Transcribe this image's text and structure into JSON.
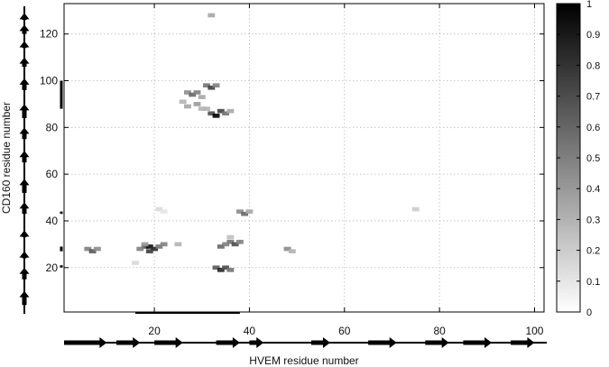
{
  "chart_data": {
    "type": "heatmap",
    "title": "",
    "xlabel": "HVEM residue number",
    "ylabel": "CD160 residue number",
    "xlim": [
      1,
      102
    ],
    "ylim": [
      1,
      133
    ],
    "xticks": [
      20,
      40,
      60,
      80,
      100
    ],
    "yticks": [
      20,
      40,
      60,
      80,
      100,
      120
    ],
    "grid": true,
    "colorbar": {
      "min": 0,
      "max": 1,
      "ticks": [
        0,
        0.1,
        0.2,
        0.3,
        0.4,
        0.5,
        0.6,
        0.7,
        0.8,
        0.9,
        1
      ],
      "colormap": [
        "#ffffff",
        "#000000"
      ]
    },
    "cells": [
      {
        "x": 32,
        "y": 128,
        "v": 0.35
      },
      {
        "x": 31,
        "y": 98,
        "v": 0.55
      },
      {
        "x": 32,
        "y": 97,
        "v": 0.75
      },
      {
        "x": 33,
        "y": 98,
        "v": 0.5
      },
      {
        "x": 27,
        "y": 95,
        "v": 0.45
      },
      {
        "x": 28,
        "y": 94,
        "v": 0.6
      },
      {
        "x": 29,
        "y": 95,
        "v": 0.5
      },
      {
        "x": 30,
        "y": 93,
        "v": 0.35
      },
      {
        "x": 26,
        "y": 91,
        "v": 0.3
      },
      {
        "x": 27,
        "y": 89,
        "v": 0.35
      },
      {
        "x": 29,
        "y": 90,
        "v": 0.4
      },
      {
        "x": 30,
        "y": 88,
        "v": 0.3
      },
      {
        "x": 32,
        "y": 86,
        "v": 0.7
      },
      {
        "x": 33,
        "y": 85,
        "v": 1.0
      },
      {
        "x": 34,
        "y": 87,
        "v": 0.75
      },
      {
        "x": 35,
        "y": 86,
        "v": 0.55
      },
      {
        "x": 36,
        "y": 87,
        "v": 0.35
      },
      {
        "x": 31,
        "y": 88,
        "v": 0.3
      },
      {
        "x": 21,
        "y": 45,
        "v": 0.15
      },
      {
        "x": 22,
        "y": 44,
        "v": 0.1
      },
      {
        "x": 38,
        "y": 44,
        "v": 0.45
      },
      {
        "x": 39,
        "y": 43,
        "v": 0.6
      },
      {
        "x": 40,
        "y": 44,
        "v": 0.35
      },
      {
        "x": 75,
        "y": 45,
        "v": 0.2
      },
      {
        "x": 36,
        "y": 33,
        "v": 0.25
      },
      {
        "x": 36,
        "y": 31,
        "v": 0.55
      },
      {
        "x": 37,
        "y": 30,
        "v": 0.7
      },
      {
        "x": 38,
        "y": 31,
        "v": 0.5
      },
      {
        "x": 34,
        "y": 29,
        "v": 0.6
      },
      {
        "x": 35,
        "y": 30,
        "v": 0.5
      },
      {
        "x": 25,
        "y": 30,
        "v": 0.3
      },
      {
        "x": 18,
        "y": 29,
        "v": 0.7
      },
      {
        "x": 19,
        "y": 29,
        "v": 0.95
      },
      {
        "x": 20,
        "y": 28,
        "v": 0.85
      },
      {
        "x": 21,
        "y": 29,
        "v": 0.55
      },
      {
        "x": 22,
        "y": 30,
        "v": 0.5
      },
      {
        "x": 17,
        "y": 28,
        "v": 0.5
      },
      {
        "x": 19,
        "y": 27,
        "v": 0.75
      },
      {
        "x": 18,
        "y": 30,
        "v": 0.4
      },
      {
        "x": 6,
        "y": 28,
        "v": 0.5
      },
      {
        "x": 7,
        "y": 27,
        "v": 0.65
      },
      {
        "x": 8,
        "y": 28,
        "v": 0.45
      },
      {
        "x": 48,
        "y": 28,
        "v": 0.45
      },
      {
        "x": 49,
        "y": 27,
        "v": 0.3
      },
      {
        "x": 16,
        "y": 22,
        "v": 0.15
      },
      {
        "x": 33,
        "y": 20,
        "v": 0.65
      },
      {
        "x": 34,
        "y": 19,
        "v": 0.85
      },
      {
        "x": 35,
        "y": 20,
        "v": 0.7
      },
      {
        "x": 36,
        "y": 19,
        "v": 0.55
      }
    ]
  },
  "x_secondary_structure": {
    "strands": [
      [
        1,
        10
      ],
      [
        12,
        17
      ],
      [
        20,
        26
      ],
      [
        33,
        38
      ],
      [
        40,
        43
      ],
      [
        53,
        57
      ],
      [
        65,
        71
      ],
      [
        77,
        82
      ],
      [
        85,
        91
      ],
      [
        95,
        100
      ]
    ],
    "helices": [
      [
        16,
        38
      ]
    ]
  },
  "y_secondary_structure": {
    "strands": [
      [
        4,
        10
      ],
      [
        15,
        20
      ],
      [
        24,
        27
      ],
      [
        33,
        36
      ],
      [
        43,
        48
      ],
      [
        52,
        58
      ],
      [
        65,
        70
      ],
      [
        75,
        80
      ],
      [
        84,
        90
      ],
      [
        96,
        101
      ],
      [
        106,
        110
      ],
      [
        114,
        117
      ],
      [
        120,
        124
      ],
      [
        126,
        129
      ]
    ],
    "helices": [
      [
        20,
        21
      ],
      [
        27,
        29
      ],
      [
        43,
        44
      ],
      [
        88,
        100
      ]
    ]
  }
}
